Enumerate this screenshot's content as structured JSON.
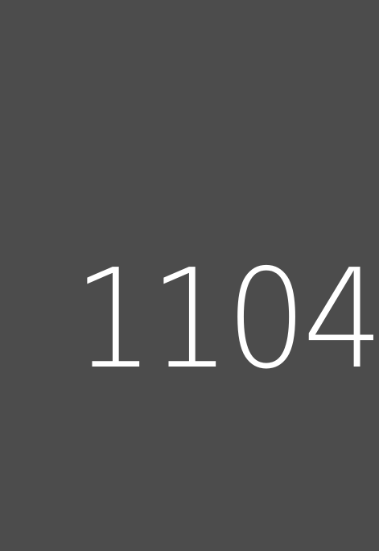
{
  "display": {
    "value": "1104"
  },
  "colors": {
    "background": "#4c4c4c",
    "text": "#ffffff"
  }
}
